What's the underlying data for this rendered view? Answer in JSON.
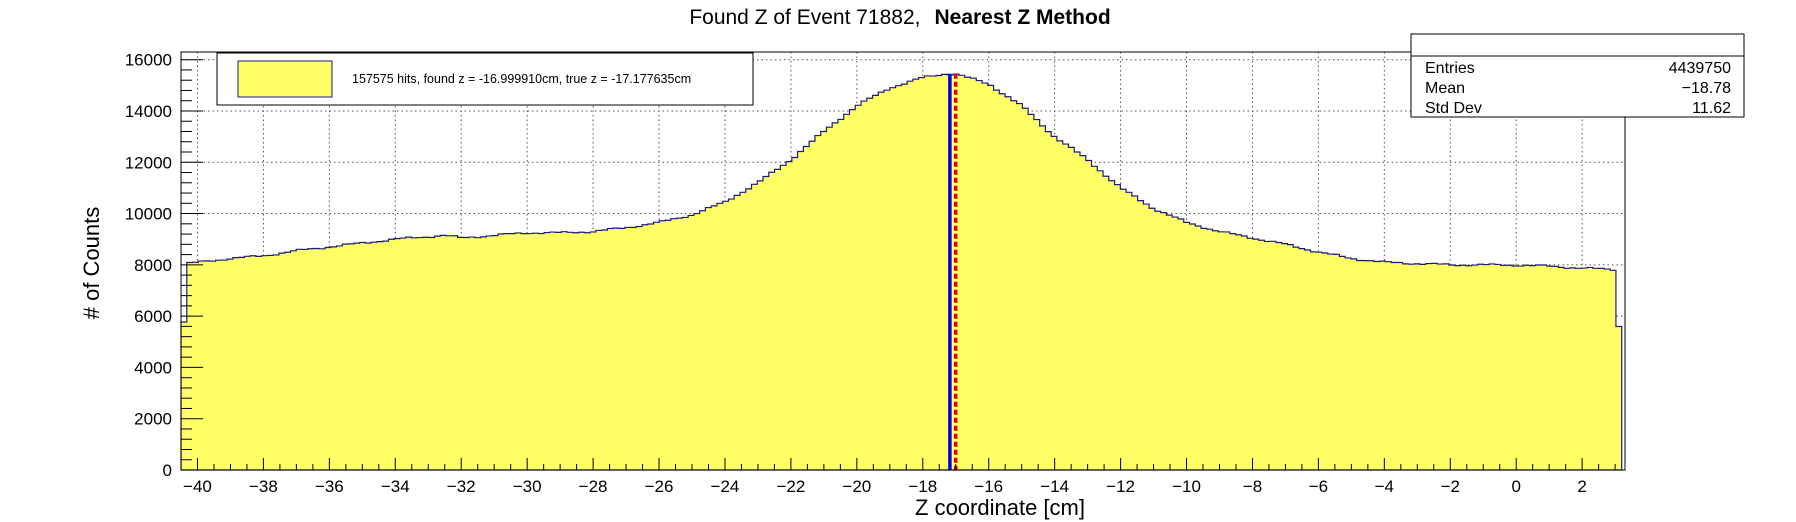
{
  "chart_data": {
    "type": "histogram",
    "title": "Found Z of Event 71882,",
    "title_bold": "Nearest Z Method",
    "xlabel": "Z coordinate [cm]",
    "ylabel": "# of Counts",
    "xlim": [
      -40.5,
      3.3
    ],
    "ylim": [
      0,
      16300
    ],
    "x_ticks": [
      -40,
      -38,
      -36,
      -34,
      -32,
      -30,
      -28,
      -26,
      -24,
      -22,
      -20,
      -18,
      -16,
      -14,
      -12,
      -10,
      -8,
      -6,
      -4,
      -2,
      0,
      2
    ],
    "y_ticks": [
      0,
      2000,
      4000,
      6000,
      8000,
      10000,
      12000,
      14000,
      16000
    ],
    "grid": true,
    "fill_color": "#ffff66",
    "line_color": "#1a1a80",
    "profile": {
      "x": [
        -40.5,
        -40.3,
        -39,
        -38,
        -37,
        -36,
        -35,
        -34,
        -33,
        -32.5,
        -32,
        -31,
        -30,
        -29,
        -28,
        -27,
        -26,
        -25,
        -24,
        -23,
        -22,
        -21,
        -20,
        -19,
        -18,
        -17.3,
        -17.0,
        -16,
        -15,
        -14,
        -13,
        -12,
        -11,
        -10,
        -9,
        -8,
        -7,
        -6,
        -5,
        -4,
        -3,
        -2,
        -1,
        0,
        1,
        2,
        3.0,
        3.2
      ],
      "y": [
        4000,
        8050,
        8250,
        8350,
        8550,
        8700,
        8850,
        9000,
        9100,
        9150,
        9050,
        9150,
        9250,
        9250,
        9300,
        9450,
        9650,
        9950,
        10450,
        11200,
        12100,
        13200,
        14200,
        14900,
        15300,
        15450,
        15450,
        15050,
        14200,
        13000,
        12100,
        11000,
        10200,
        9650,
        9300,
        9050,
        8800,
        8500,
        8250,
        8100,
        8050,
        8000,
        8000,
        7990,
        7950,
        7870,
        7820,
        3900
      ]
    },
    "found_z": -16.99991,
    "true_z": -17.177635,
    "found_line_color": "#e00000",
    "true_line_color": "#0000ee",
    "legend": {
      "label": "157575 hits, found z = -16.999910cm, true z = -17.177635cm",
      "placement": "top-left"
    },
    "stats": {
      "rows": [
        {
          "label": "Entries",
          "value": "4439750"
        },
        {
          "label": "Mean",
          "value": "−18.78"
        },
        {
          "label": "Std Dev",
          "value": "11.62"
        }
      ],
      "placement": "top-right"
    }
  }
}
